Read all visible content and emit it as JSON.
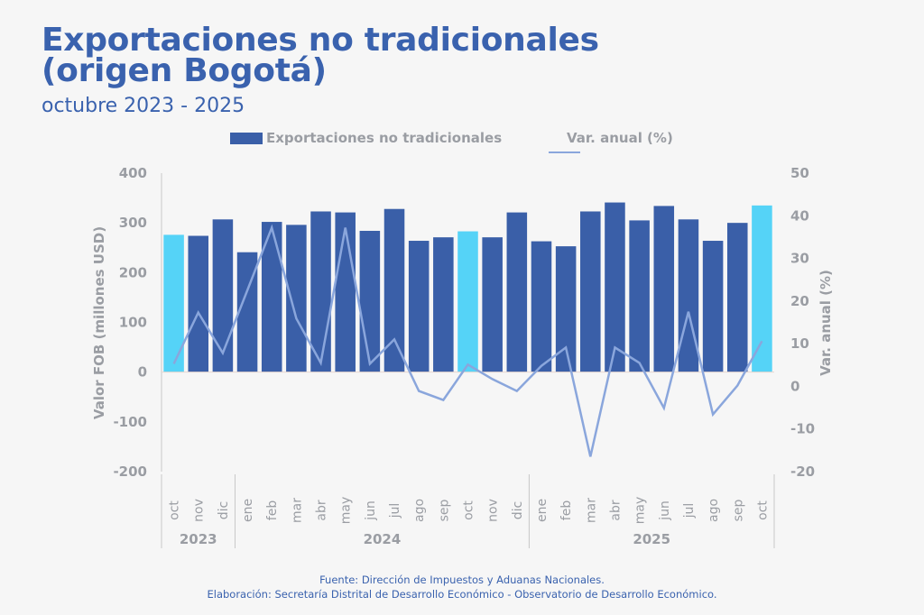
{
  "header": {
    "title_line1": "Exportaciones no tradicionales",
    "title_line2": "(origen Bogotá)",
    "subtitle": "octubre 2023 - 2025"
  },
  "legend": {
    "bar_label": "Exportaciones no tradicionales",
    "line_label": "Var. anual (%)"
  },
  "footer": {
    "source": "Fuente: Dirección de Impuestos y Aduanas Nacionales.",
    "credit": "Elaboración: Secretaría Distrital de Desarrollo Económico - Observatorio de Desarrollo Económico."
  },
  "colors": {
    "bar": "#3a5fa8",
    "bar_highlight": "#55d3f7",
    "line": "#8aa6dc",
    "axis_text": "#9a9da3",
    "title": "#3a62ae"
  },
  "chart_data": {
    "type": "bar+line",
    "title": "Exportaciones no tradicionales (origen Bogotá)",
    "subtitle": "octubre 2023 - 2025",
    "categories": [
      "oct",
      "nov",
      "dic",
      "ene",
      "feb",
      "mar",
      "abr",
      "may",
      "jun",
      "jul",
      "ago",
      "sep",
      "oct",
      "nov",
      "dic",
      "ene",
      "feb",
      "mar",
      "abr",
      "may",
      "jun",
      "jul",
      "ago",
      "sep",
      "oct"
    ],
    "year_groups": [
      {
        "label": "2023",
        "count": 3
      },
      {
        "label": "2024",
        "count": 12
      },
      {
        "label": "2025",
        "count": 10
      }
    ],
    "highlight_indices": [
      0,
      12,
      24
    ],
    "series": [
      {
        "name": "Exportaciones no tradicionales",
        "type": "bar",
        "axis": "left",
        "values": [
          276,
          274,
          307,
          241,
          302,
          296,
          323,
          321,
          284,
          328,
          264,
          271,
          283,
          271,
          321,
          263,
          253,
          323,
          341,
          305,
          334,
          307,
          264,
          300,
          335
        ]
      },
      {
        "name": "Var. anual (%)",
        "type": "line",
        "axis": "right",
        "values": [
          5.3,
          17.3,
          7.8,
          22.5,
          37.2,
          15.9,
          5.5,
          37.2,
          5.3,
          11.0,
          -1.1,
          -3.2,
          5.1,
          1.7,
          -1.1,
          4.8,
          9.1,
          -16.5,
          9.1,
          5.5,
          -5.1,
          17.5,
          -6.6,
          0.2,
          10.6
        ]
      }
    ],
    "ylabel": "Valor FOB (millones USD)",
    "ylim": [
      -200,
      400
    ],
    "yticks": [
      400,
      300,
      200,
      100,
      0,
      -100,
      -200
    ],
    "y2label": "Var. anual (%)",
    "y2lim": [
      -20,
      50
    ],
    "y2ticks": [
      50,
      40,
      30,
      20,
      10,
      0,
      -10,
      -20
    ],
    "legend_position": "top",
    "grid": false
  }
}
